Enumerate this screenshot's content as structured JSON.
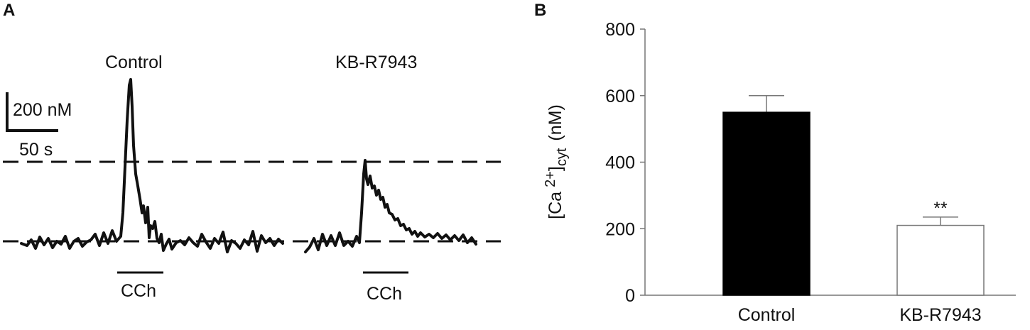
{
  "panel_a": {
    "letter": "A",
    "traces": [
      {
        "label": "Control",
        "stimulus": "CCh"
      },
      {
        "label": "KB-R7943",
        "stimulus": "CCh"
      }
    ],
    "scale_bar": {
      "y_label": "200 nM",
      "x_label": "50 s"
    }
  },
  "panel_b": {
    "letter": "B",
    "y_label_main": "[Ca",
    "y_label_sup": "2+",
    "y_label_bracket": "]",
    "y_label_sub": "cyt",
    "y_label_unit": "(nM)",
    "significance": "**"
  },
  "chart_data": [
    {
      "type": "bar",
      "categories": [
        "Control",
        "KB-R7943"
      ],
      "values": [
        550,
        210
      ],
      "errors": [
        50,
        25
      ],
      "colors": [
        "#000000",
        "#ffffff"
      ],
      "ylim": [
        0,
        800
      ],
      "yticks": [
        0,
        200,
        400,
        600,
        800
      ],
      "grid": false
    }
  ]
}
